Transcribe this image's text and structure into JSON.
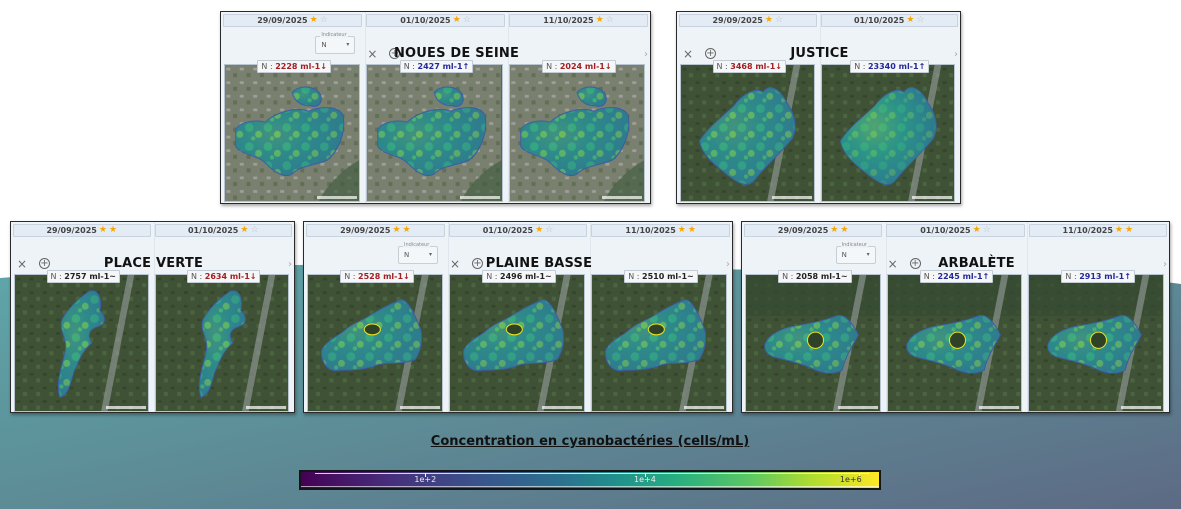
{
  "colors": {
    "trend_down": "#a31f22",
    "trend_up": "#24299a",
    "trend_flat": "#222222",
    "star_full": "#f5a70a",
    "star_empty": "#b9c2cc",
    "background_teal": "#5b9ea4",
    "background_slate": "#5f6e85"
  },
  "common": {
    "indicator_label": "Indicateur",
    "indicator_value": "N",
    "close_icon": "×",
    "add_icon": "+",
    "next_icon": "›",
    "caret_icon": "▾"
  },
  "panels": [
    {
      "id": "noues-de-seine",
      "title": "NOUES DE SEINE",
      "has_indicator": true,
      "dates": [
        {
          "date": "29/09/2025",
          "stars": 1
        },
        {
          "date": "01/10/2025",
          "stars": 1
        },
        {
          "date": "11/10/2025",
          "stars": 1
        }
      ],
      "readings": [
        {
          "prefix": "N : ",
          "value": "2228 ml-1",
          "trend": "down",
          "arrow": "↓"
        },
        {
          "prefix": "N : ",
          "value": "2427 ml-1",
          "trend": "up",
          "arrow": "↑"
        },
        {
          "prefix": "N : ",
          "value": "2024 ml-1",
          "trend": "down",
          "arrow": "↓"
        }
      ]
    },
    {
      "id": "justice",
      "title": "JUSTICE",
      "has_indicator": false,
      "dates": [
        {
          "date": "29/09/2025",
          "stars": 1
        },
        {
          "date": "01/10/2025",
          "stars": 1
        }
      ],
      "readings": [
        {
          "prefix": "N : ",
          "value": "3468 ml-1",
          "trend": "down",
          "arrow": "↓"
        },
        {
          "prefix": "N : ",
          "value": "23340 ml-1",
          "trend": "up",
          "arrow": "↑"
        }
      ]
    },
    {
      "id": "place-verte",
      "title": "PLACE VERTE",
      "has_indicator": false,
      "dates": [
        {
          "date": "29/09/2025",
          "stars": 2
        },
        {
          "date": "01/10/2025",
          "stars": 1
        }
      ],
      "readings": [
        {
          "prefix": "N : ",
          "value": "2757 ml-1",
          "trend": "flat",
          "arrow": "~"
        },
        {
          "prefix": "N : ",
          "value": "2634 ml-1",
          "trend": "down",
          "arrow": "↓"
        }
      ]
    },
    {
      "id": "plaine-basse",
      "title": "PLAINE BASSE",
      "has_indicator": true,
      "dates": [
        {
          "date": "29/09/2025",
          "stars": 2
        },
        {
          "date": "01/10/2025",
          "stars": 1
        },
        {
          "date": "11/10/2025",
          "stars": 2
        }
      ],
      "readings": [
        {
          "prefix": "N : ",
          "value": "2528 ml-1",
          "trend": "down",
          "arrow": "↓"
        },
        {
          "prefix": "N : ",
          "value": "2496 ml-1",
          "trend": "flat",
          "arrow": "~"
        },
        {
          "prefix": "N : ",
          "value": "2510 ml-1",
          "trend": "flat",
          "arrow": "~"
        }
      ]
    },
    {
      "id": "arbalete",
      "title": "ARBALÈTE",
      "has_indicator": true,
      "dates": [
        {
          "date": "29/09/2025",
          "stars": 2
        },
        {
          "date": "01/10/2025",
          "stars": 1
        },
        {
          "date": "11/10/2025",
          "stars": 2
        }
      ],
      "readings": [
        {
          "prefix": "N : ",
          "value": "2058 ml-1",
          "trend": "flat",
          "arrow": "~"
        },
        {
          "prefix": "N : ",
          "value": "2245 ml-1",
          "trend": "up",
          "arrow": "↑"
        },
        {
          "prefix": "N : ",
          "value": "2913 ml-1",
          "trend": "up",
          "arrow": "↑"
        }
      ]
    }
  ],
  "legend": {
    "title": "Concentration en cyanobactéries (cells/mL)",
    "ticks": [
      {
        "label": "1e+2",
        "pos": 0.215
      },
      {
        "label": "1e+4",
        "pos": 0.595
      },
      {
        "label": "1e+6",
        "pos": 0.965
      }
    ]
  }
}
